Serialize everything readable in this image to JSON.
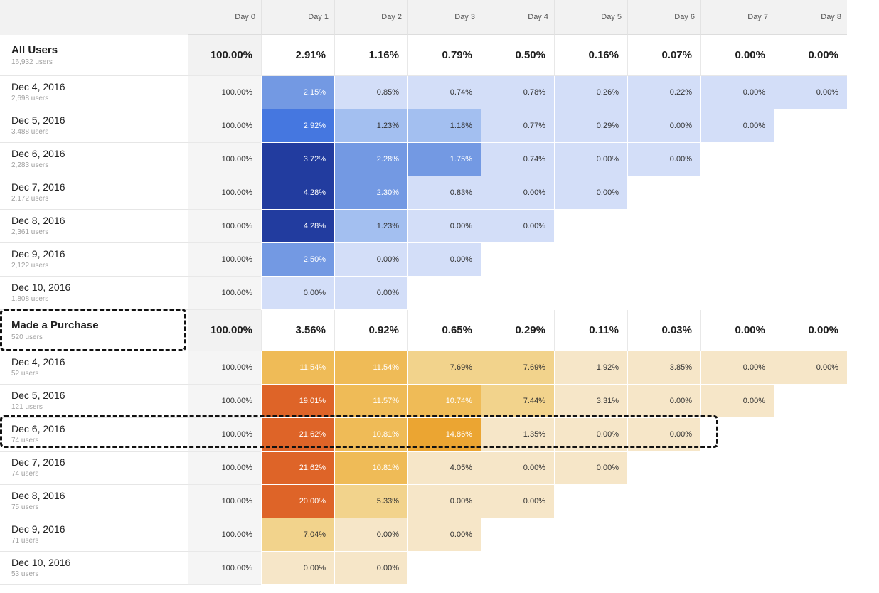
{
  "columns": [
    "Day 0",
    "Day 1",
    "Day 2",
    "Day 3",
    "Day 4",
    "Day 5",
    "Day 6",
    "Day 7",
    "Day 8"
  ],
  "colors": {
    "header_bg": "#f2f2f2",
    "day0_bg": "#f5f5f5",
    "blue_scale": [
      "#d3def8",
      "#a3bff0",
      "#7399e3",
      "#4577e0",
      "#223c9f"
    ],
    "orange_scale": [
      "#f6e6c8",
      "#f2d38c",
      "#efbb57",
      "#eba532",
      "#de6428"
    ],
    "highlight_dash": "#111111"
  },
  "segments": [
    {
      "name": "All Users",
      "users": "16,932 users",
      "palette": "blue",
      "totals": [
        "100.00%",
        "2.91%",
        "1.16%",
        "0.79%",
        "0.50%",
        "0.16%",
        "0.07%",
        "0.00%",
        "0.00%"
      ],
      "rows": [
        {
          "date": "Dec 4, 2016",
          "users": "2,698 users",
          "values": [
            "100.00%",
            "2.15%",
            "0.85%",
            "0.74%",
            "0.78%",
            "0.26%",
            "0.22%",
            "0.00%",
            "0.00%"
          ],
          "levels": [
            null,
            2,
            0,
            0,
            0,
            0,
            0,
            0,
            0
          ]
        },
        {
          "date": "Dec 5, 2016",
          "users": "3,488 users",
          "values": [
            "100.00%",
            "2.92%",
            "1.23%",
            "1.18%",
            "0.77%",
            "0.29%",
            "0.00%",
            "0.00%"
          ],
          "levels": [
            null,
            3,
            1,
            1,
            0,
            0,
            0,
            0
          ]
        },
        {
          "date": "Dec 6, 2016",
          "users": "2,283 users",
          "values": [
            "100.00%",
            "3.72%",
            "2.28%",
            "1.75%",
            "0.74%",
            "0.00%",
            "0.00%"
          ],
          "levels": [
            null,
            4,
            2,
            2,
            0,
            0,
            0
          ]
        },
        {
          "date": "Dec 7, 2016",
          "users": "2,172 users",
          "values": [
            "100.00%",
            "4.28%",
            "2.30%",
            "0.83%",
            "0.00%",
            "0.00%"
          ],
          "levels": [
            null,
            4,
            2,
            0,
            0,
            0
          ]
        },
        {
          "date": "Dec 8, 2016",
          "users": "2,361 users",
          "values": [
            "100.00%",
            "4.28%",
            "1.23%",
            "0.00%",
            "0.00%"
          ],
          "levels": [
            null,
            4,
            1,
            0,
            0
          ]
        },
        {
          "date": "Dec 9, 2016",
          "users": "2,122 users",
          "values": [
            "100.00%",
            "2.50%",
            "0.00%",
            "0.00%"
          ],
          "levels": [
            null,
            2,
            0,
            0
          ]
        },
        {
          "date": "Dec 10, 2016",
          "users": "1,808 users",
          "values": [
            "100.00%",
            "0.00%",
            "0.00%"
          ],
          "levels": [
            null,
            0,
            0
          ]
        }
      ]
    },
    {
      "name": "Made a Purchase",
      "users": "520 users",
      "palette": "orange",
      "totals": [
        "100.00%",
        "3.56%",
        "0.92%",
        "0.65%",
        "0.29%",
        "0.11%",
        "0.03%",
        "0.00%",
        "0.00%"
      ],
      "rows": [
        {
          "date": "Dec 4, 2016",
          "users": "52 users",
          "values": [
            "100.00%",
            "11.54%",
            "11.54%",
            "7.69%",
            "7.69%",
            "1.92%",
            "3.85%",
            "0.00%",
            "0.00%"
          ],
          "levels": [
            null,
            2,
            2,
            1,
            1,
            0,
            0,
            0,
            0
          ]
        },
        {
          "date": "Dec 5, 2016",
          "users": "121 users",
          "values": [
            "100.00%",
            "19.01%",
            "11.57%",
            "10.74%",
            "7.44%",
            "3.31%",
            "0.00%",
            "0.00%"
          ],
          "levels": [
            null,
            4,
            2,
            2,
            1,
            0,
            0,
            0
          ]
        },
        {
          "date": "Dec 6, 2016",
          "users": "74 users",
          "values": [
            "100.00%",
            "21.62%",
            "10.81%",
            "14.86%",
            "1.35%",
            "0.00%",
            "0.00%"
          ],
          "levels": [
            null,
            4,
            2,
            3,
            0,
            0,
            0
          ]
        },
        {
          "date": "Dec 7, 2016",
          "users": "74 users",
          "values": [
            "100.00%",
            "21.62%",
            "10.81%",
            "4.05%",
            "0.00%",
            "0.00%"
          ],
          "levels": [
            null,
            4,
            2,
            0,
            0,
            0
          ]
        },
        {
          "date": "Dec 8, 2016",
          "users": "75 users",
          "values": [
            "100.00%",
            "20.00%",
            "5.33%",
            "0.00%",
            "0.00%"
          ],
          "levels": [
            null,
            4,
            1,
            0,
            0
          ]
        },
        {
          "date": "Dec 9, 2016",
          "users": "71 users",
          "values": [
            "100.00%",
            "7.04%",
            "0.00%",
            "0.00%"
          ],
          "levels": [
            null,
            1,
            0,
            0
          ]
        },
        {
          "date": "Dec 10, 2016",
          "users": "53 users",
          "values": [
            "100.00%",
            "0.00%",
            "0.00%"
          ],
          "levels": [
            null,
            0,
            0
          ]
        }
      ]
    }
  ]
}
